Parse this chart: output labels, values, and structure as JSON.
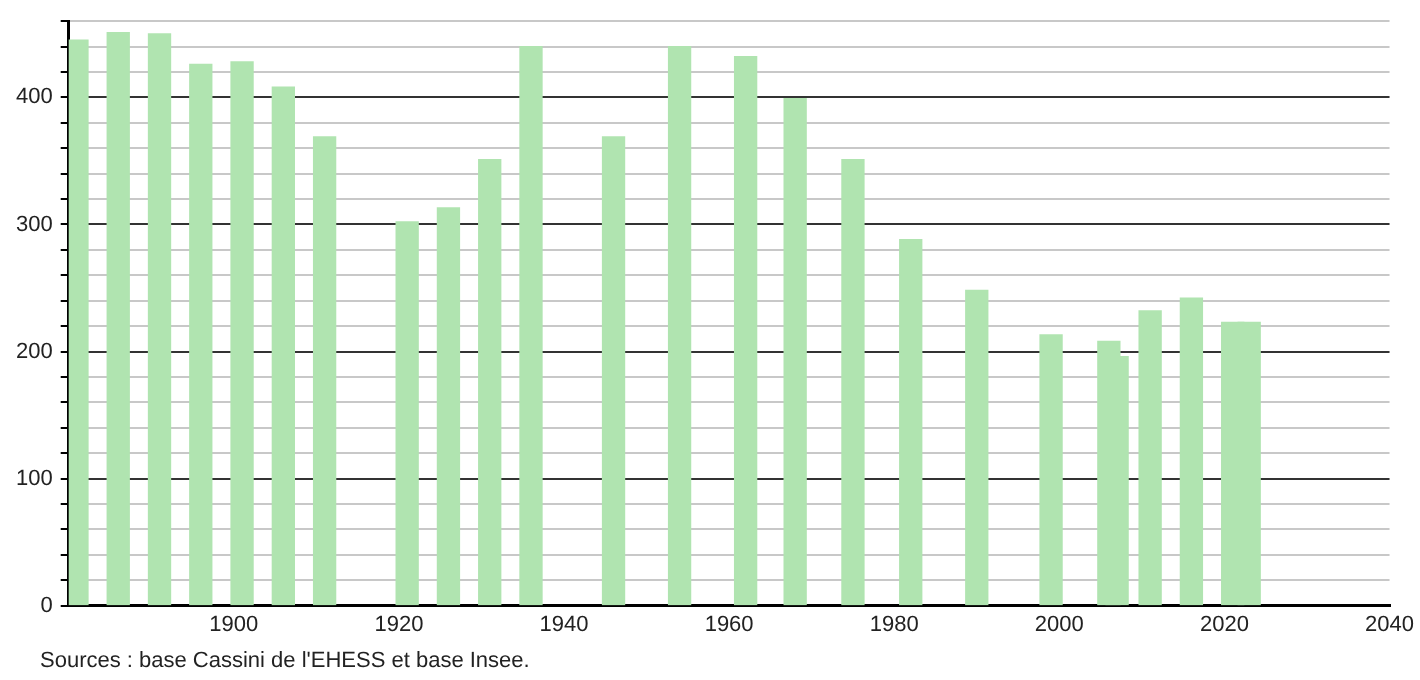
{
  "chart_data": {
    "type": "bar",
    "x": [
      1881,
      1886,
      1891,
      1896,
      1901,
      1906,
      1911,
      1921,
      1926,
      1931,
      1936,
      1946,
      1954,
      1962,
      1968,
      1975,
      1982,
      1990,
      1999,
      2006,
      2007,
      2011,
      2016,
      2021,
      2023
    ],
    "values": [
      445,
      451,
      450,
      426,
      428,
      408,
      369,
      302,
      313,
      351,
      440,
      369,
      440,
      432,
      399,
      351,
      288,
      248,
      213,
      208,
      196,
      232,
      242,
      223,
      223
    ],
    "color": "#b0e4b0",
    "xlim": [
      1880,
      2040
    ],
    "xticks": [
      1900,
      1920,
      1940,
      1960,
      1980,
      2000,
      2020,
      2040
    ],
    "ylim": [
      0,
      460
    ],
    "yticks": [
      0,
      {
        "value": 20,
        "label": null
      },
      {
        "value": 40,
        "label": null
      },
      {
        "value": 60,
        "label": null
      },
      {
        "value": 80,
        "label": null
      },
      100,
      {
        "value": 120,
        "label": null
      },
      {
        "value": 140,
        "label": null
      },
      {
        "value": 160,
        "label": null
      },
      {
        "value": 180,
        "label": null
      },
      200,
      {
        "value": 220,
        "label": null
      },
      {
        "value": 240,
        "label": null
      },
      {
        "value": 260,
        "label": null
      },
      {
        "value": 280,
        "label": null
      },
      300,
      {
        "value": 320,
        "label": null
      },
      {
        "value": 340,
        "label": null
      },
      {
        "value": 360,
        "label": null
      },
      {
        "value": 380,
        "label": null
      },
      400,
      {
        "value": 420,
        "label": null
      },
      {
        "value": 440,
        "label": null
      },
      {
        "value": 460,
        "label": null
      }
    ],
    "grid": "y",
    "annotations": [
      "Sources : base Cassini de l'EHESS et base Insee."
    ]
  }
}
